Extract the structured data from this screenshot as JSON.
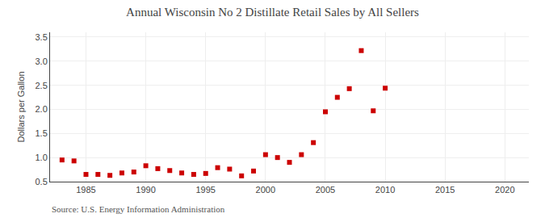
{
  "chart_data": {
    "type": "scatter",
    "title": "Annual Wisconsin No 2 Distillate Retail Sales by All Sellers",
    "ylabel": "Dollars per Gallon",
    "annotations": [
      "Source: U.S. Energy Information Administration"
    ],
    "x": [
      1983,
      1984,
      1985,
      1986,
      1987,
      1988,
      1989,
      1990,
      1991,
      1992,
      1993,
      1994,
      1995,
      1996,
      1997,
      1998,
      1999,
      2000,
      2001,
      2002,
      2003,
      2004,
      2005,
      2006,
      2007,
      2008,
      2009,
      2010
    ],
    "values": [
      0.95,
      0.93,
      0.65,
      0.65,
      0.63,
      0.68,
      0.7,
      0.83,
      0.77,
      0.73,
      0.68,
      0.65,
      0.67,
      0.79,
      0.76,
      0.62,
      0.72,
      1.06,
      1.0,
      0.9,
      1.06,
      1.31,
      1.95,
      2.25,
      2.43,
      3.22,
      1.97,
      2.44
    ],
    "color": "#cc0000",
    "marker": "square",
    "xlim": [
      1982,
      2022
    ],
    "ylim": [
      0.5,
      3.6
    ],
    "xticks": [
      1985,
      1990,
      1995,
      2000,
      2005,
      2010,
      2015,
      2020
    ],
    "yticks": [
      0.5,
      {
        "value": 1.0,
        "label": "1.0"
      },
      1.5,
      {
        "value": 2.0,
        "label": "2.0"
      },
      2.5,
      {
        "value": 3.0,
        "label": "3.0"
      },
      3.5
    ],
    "grid": true
  }
}
